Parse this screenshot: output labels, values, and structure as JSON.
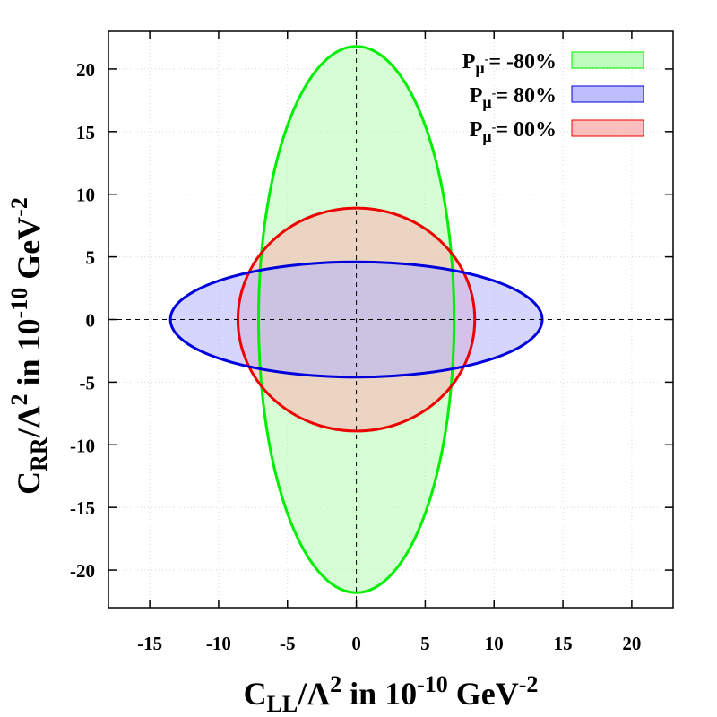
{
  "chart_data": {
    "type": "ellipse-contour",
    "title": "",
    "xlabel": {
      "main": "C",
      "sub": "LL",
      "slash": "/Λ",
      "sup": "2",
      "mid": " in 10",
      "exp": "-10",
      "unit": " GeV",
      "unitexp": "-2"
    },
    "ylabel": {
      "main": "C",
      "sub": "RR",
      "slash": "/Λ",
      "sup": "2",
      "mid": "  in  10",
      "exp": "-10",
      "unit": "  GeV",
      "unitexp": "-2"
    },
    "xlim": [
      -18,
      23
    ],
    "ylim": [
      -23,
      23
    ],
    "x_ticks": [
      -15,
      -10,
      -5,
      0,
      5,
      10,
      15,
      20
    ],
    "y_ticks": [
      -20,
      -15,
      -10,
      -5,
      0,
      5,
      10,
      15,
      20
    ],
    "grid": true,
    "legend_position": "top-right",
    "series": [
      {
        "name": "P_μ- = -80%",
        "legend_label": {
          "p": "P",
          "sub": "μ",
          "supminus": "-",
          "value": "= -80%"
        },
        "cx": 0,
        "cy": 0,
        "rx": 7.1,
        "ry": 21.8,
        "fill": "#b3fdb3",
        "stroke": "#00ee00"
      },
      {
        "name": "P_μ- = 80%",
        "legend_label": {
          "p": "P",
          "sub": "μ",
          "supminus": "-",
          "value": "=  80%"
        },
        "cx": 0,
        "cy": 0,
        "rx": 13.5,
        "ry": 4.6,
        "fill": "#b3b3fd",
        "stroke": "#0000dd"
      },
      {
        "name": "P_μ- = 00%",
        "legend_label": {
          "p": "P",
          "sub": "μ",
          "supminus": "-",
          "value": "=  00%"
        },
        "cx": 0,
        "cy": 0,
        "rx": 8.6,
        "ry": 8.9,
        "fill": "#fdb3b3",
        "stroke": "#ee0000"
      }
    ],
    "draw_order": [
      0,
      2,
      1
    ],
    "fill_opacity": 0.55
  }
}
